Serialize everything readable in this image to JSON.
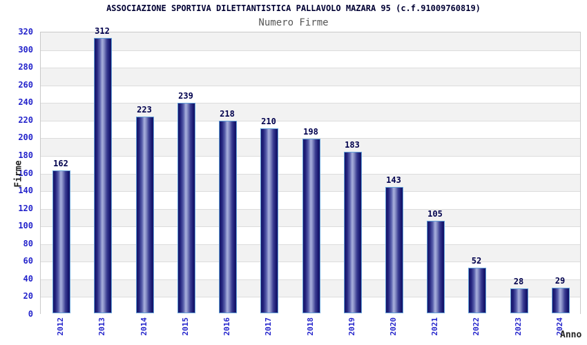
{
  "header": {
    "title": "ASSOCIAZIONE SPORTIVA DILETTANTISTICA PALLAVOLO MAZARA 95 (c.f.91009760819)",
    "subtitle": "Numero Firme"
  },
  "chart_data": {
    "type": "bar",
    "title": "ASSOCIAZIONE SPORTIVA DILETTANTISTICA PALLAVOLO MAZARA 95 (c.f.91009760819)",
    "subtitle": "Numero Firme",
    "categories": [
      "2012",
      "2013",
      "2014",
      "2015",
      "2016",
      "2017",
      "2018",
      "2019",
      "2020",
      "2021",
      "2022",
      "2023",
      "2024"
    ],
    "values": [
      162,
      312,
      223,
      239,
      218,
      210,
      198,
      183,
      143,
      105,
      52,
      28,
      29
    ],
    "xlabel": "Anno",
    "ylabel": "Firme",
    "ylim": [
      0,
      320
    ],
    "ytick_step": 20,
    "yticks": [
      0,
      20,
      40,
      60,
      80,
      100,
      120,
      140,
      160,
      180,
      200,
      220,
      240,
      260,
      280,
      300,
      320
    ],
    "grid": true,
    "legend_position": "none",
    "band_colors": [
      "#f2f2f2",
      "#ffffff"
    ],
    "colors": {
      "title": "#000033",
      "subtitle": "#555555",
      "tick_label": "#2323cb",
      "value_label": "#00004d",
      "axis_title": "#222222",
      "bar_dark": "#141468",
      "bar_light": "#a9b0dd",
      "bar_border": "#63a0d8",
      "gridline": "#dcdcdc",
      "plot_border": "#c9c9c9"
    }
  }
}
